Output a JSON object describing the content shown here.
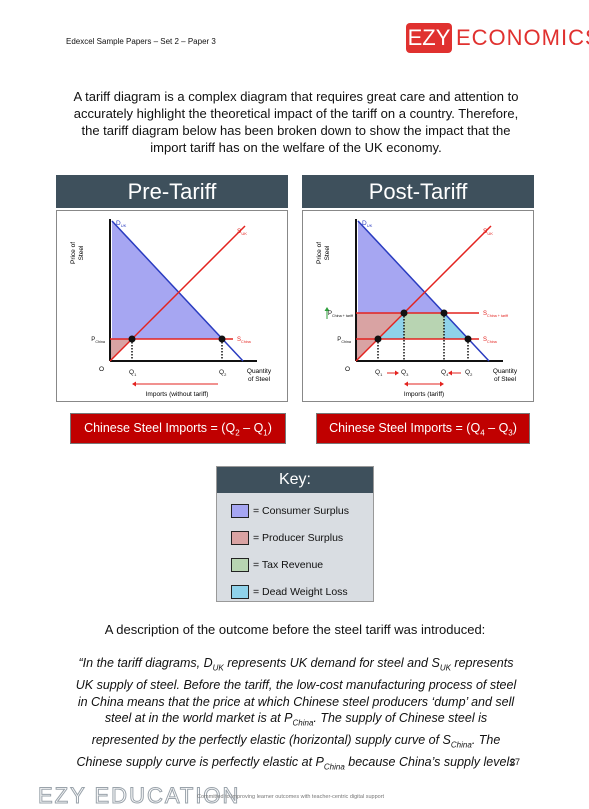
{
  "header": {
    "title": "Edexcel Sample Papers – Set 2 – Paper 3",
    "logo": {
      "brand": "EZY",
      "name": "ECONOMICS"
    }
  },
  "intro": "A tariff diagram is a complex diagram that requires great care and attention to accurately highlight the theoretical impact of the tariff on a country. Therefore, the tariff diagram below has been broken down to show the impact that the import tariff has on the welfare of the UK economy.",
  "diagrams": [
    {
      "title": "Pre-Tariff",
      "y_axis": [
        "Price of",
        "Steel"
      ],
      "x_axis": [
        "Quantity",
        "of Steel"
      ],
      "origin": "O",
      "demand": {
        "base": "D",
        "sub": "UK"
      },
      "supply": {
        "base": "S",
        "sub": "UK"
      },
      "world_price": {
        "base": "P",
        "sub": "China"
      },
      "world_supply": {
        "base": "S",
        "sub": "China"
      },
      "q": [
        {
          "base": "Q",
          "sub": "1"
        },
        {
          "base": "Q",
          "sub": "2"
        }
      ],
      "imports": "Imports (without tariff)",
      "caption": {
        "lead": "Chinese Steel Imports = (",
        "a": {
          "base": "Q",
          "sub": "2"
        },
        "op": " – ",
        "b": {
          "base": "Q",
          "sub": "1"
        },
        "close": ")"
      }
    },
    {
      "title": "Post-Tariff",
      "y_axis": [
        "Price of",
        "Steel"
      ],
      "x_axis": [
        "Quantity",
        "of Steel"
      ],
      "origin": "O",
      "demand": {
        "base": "D",
        "sub": "UK"
      },
      "supply": {
        "base": "S",
        "sub": "UK"
      },
      "tariff_price": {
        "base": "P",
        "sub": "China + tariff"
      },
      "tariff_supply": {
        "base": "S",
        "sub": "China + tariff"
      },
      "world_price": {
        "base": "P",
        "sub": "China"
      },
      "world_supply": {
        "base": "S",
        "sub": "China"
      },
      "q": [
        {
          "base": "Q",
          "sub": "1"
        },
        {
          "base": "Q",
          "sub": "3"
        },
        {
          "base": "Q",
          "sub": "4"
        },
        {
          "base": "Q",
          "sub": "2"
        }
      ],
      "imports": "Imports (tariff)",
      "caption": {
        "lead": "Chinese Steel Imports = (",
        "a": {
          "base": "Q",
          "sub": "4"
        },
        "op": " – ",
        "b": {
          "base": "Q",
          "sub": "3"
        },
        "close": ")"
      }
    }
  ],
  "key": {
    "title": "Key:",
    "items": [
      "= Consumer Surplus",
      "= Producer Surplus",
      "= Tax Revenue",
      "= Dead Weight Loss"
    ]
  },
  "description_heading": "A description of the outcome before the steel tariff was introduced:",
  "quote": [
    {
      "text": "“In the tariff diagrams, D"
    },
    {
      "sub": "UK"
    },
    {
      "text": " represents UK demand for steel and S"
    },
    {
      "sub": "UK"
    },
    {
      "text": " represents UK supply of steel. Before the tariff, the low-cost manufacturing process of steel in China means that the price at which Chinese steel producers ‘dump’ and sell steel at in the world market is at P"
    },
    {
      "sub": "China"
    },
    {
      "text": ". The supply of Chinese steel is represented by the perfectly elastic (horizontal) supply curve of S"
    },
    {
      "sub": "China"
    },
    {
      "text": ". The Chinese supply curve is perfectly elastic at P"
    },
    {
      "sub": "China"
    },
    {
      "text": " because China’s supply levels"
    }
  ],
  "page_number": "27",
  "footer": {
    "brand": "EZY EDUCATION",
    "tagline": "Committed to improving learner outcomes with teacher-centric digital support"
  }
}
